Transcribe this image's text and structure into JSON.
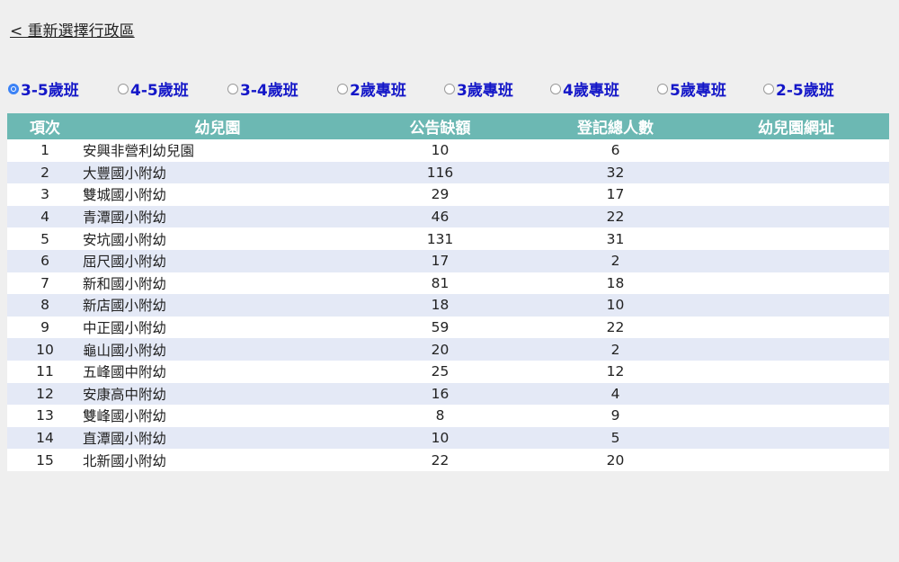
{
  "back_link": {
    "label": "< 重新選擇行政區"
  },
  "class_options": [
    {
      "label": "3-5歲班",
      "checked": true
    },
    {
      "label": "4-5歲班",
      "checked": false
    },
    {
      "label": "3-4歲班",
      "checked": false
    },
    {
      "label": "2歲專班",
      "checked": false
    },
    {
      "label": "3歲專班",
      "checked": false
    },
    {
      "label": "4歲專班",
      "checked": false
    },
    {
      "label": "5歲專班",
      "checked": false
    },
    {
      "label": "2-5歲班",
      "checked": false
    }
  ],
  "table": {
    "headers": [
      "項次",
      "幼兒園",
      "公告缺額",
      "登記總人數",
      "幼兒園網址"
    ],
    "rows": [
      {
        "idx": "1",
        "name": "安興非營利幼兒園",
        "vacancy": "10",
        "registered": "6",
        "url": ""
      },
      {
        "idx": "2",
        "name": "大豐國小附幼",
        "vacancy": "116",
        "registered": "32",
        "url": ""
      },
      {
        "idx": "3",
        "name": "雙城國小附幼",
        "vacancy": "29",
        "registered": "17",
        "url": ""
      },
      {
        "idx": "4",
        "name": "青潭國小附幼",
        "vacancy": "46",
        "registered": "22",
        "url": ""
      },
      {
        "idx": "5",
        "name": "安坑國小附幼",
        "vacancy": "131",
        "registered": "31",
        "url": ""
      },
      {
        "idx": "6",
        "name": "屈尺國小附幼",
        "vacancy": "17",
        "registered": "2",
        "url": ""
      },
      {
        "idx": "7",
        "name": "新和國小附幼",
        "vacancy": "81",
        "registered": "18",
        "url": ""
      },
      {
        "idx": "8",
        "name": "新店國小附幼",
        "vacancy": "18",
        "registered": "10",
        "url": ""
      },
      {
        "idx": "9",
        "name": "中正國小附幼",
        "vacancy": "59",
        "registered": "22",
        "url": ""
      },
      {
        "idx": "10",
        "name": "龜山國小附幼",
        "vacancy": "20",
        "registered": "2",
        "url": ""
      },
      {
        "idx": "11",
        "name": "五峰國中附幼",
        "vacancy": "25",
        "registered": "12",
        "url": ""
      },
      {
        "idx": "12",
        "name": "安康高中附幼",
        "vacancy": "16",
        "registered": "4",
        "url": ""
      },
      {
        "idx": "13",
        "name": "雙峰國小附幼",
        "vacancy": "8",
        "registered": "9",
        "url": ""
      },
      {
        "idx": "14",
        "name": "直潭國小附幼",
        "vacancy": "10",
        "registered": "5",
        "url": ""
      },
      {
        "idx": "15",
        "name": "北新國小附幼",
        "vacancy": "22",
        "registered": "20",
        "url": ""
      }
    ]
  },
  "colors": {
    "header_bg": "#6cb8b3",
    "row_alt_bg": "#e4e9f6",
    "radio_label": "#1417c8",
    "radio_checked": "#3b82f6",
    "page_bg": "#efefef"
  }
}
